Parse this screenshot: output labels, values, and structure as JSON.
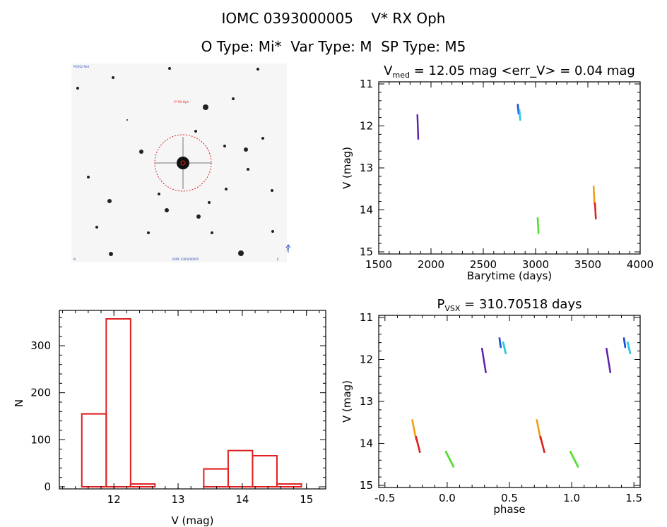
{
  "header": {
    "line1": "IOMC 0393000005    V* RX Oph",
    "line2": "O Type: Mi*  Var Type: M  SP Type: M5"
  },
  "image_panel": {
    "target_label": "V* RX Oph",
    "corner_labels": [
      "POSS2 Red",
      "N",
      "E",
      "IOMC 0393000005",
      "1'"
    ]
  },
  "chart_data": [
    {
      "type": "scatter",
      "id": "lightcurve",
      "title_prefix": "V",
      "title_sub": "med",
      "title_rest": " = 12.05 mag <err_V> = 0.04 mag",
      "xlabel": "Barytime (days)",
      "ylabel": "V (mag)",
      "xlim": [
        1500,
        4000
      ],
      "ylim": [
        15.05,
        10.95
      ],
      "xticks": [
        1500,
        2000,
        2500,
        3000,
        3500,
        4000
      ],
      "yticks": [
        11,
        12,
        13,
        14,
        15
      ],
      "series": [
        {
          "name": "group1",
          "color": "#5a1ea8",
          "x": 1870,
          "y_range": [
            11.75,
            12.3
          ]
        },
        {
          "name": "group2a",
          "color": "#1e4fd6",
          "x": 2830,
          "y_range": [
            11.5,
            11.7
          ]
        },
        {
          "name": "group2b",
          "color": "#28c8e8",
          "x": 2845,
          "y_range": [
            11.62,
            11.85
          ]
        },
        {
          "name": "group3",
          "color": "#50e02a",
          "x": 3020,
          "y_range": [
            14.2,
            14.55
          ]
        },
        {
          "name": "group4a",
          "color": "#f09a10",
          "x": 3555,
          "y_range": [
            13.45,
            13.85
          ]
        },
        {
          "name": "group4b",
          "color": "#e02020",
          "x": 3568,
          "y_range": [
            13.85,
            14.2
          ]
        }
      ]
    },
    {
      "type": "bar",
      "id": "histogram",
      "xlabel": "V (mag)",
      "ylabel": "N",
      "xlim": [
        11.15,
        15.3
      ],
      "ylim": [
        0,
        375
      ],
      "xticks": [
        12,
        13,
        14,
        15
      ],
      "yticks": [
        0,
        100,
        200,
        300
      ],
      "bin_edges": [
        11.5,
        11.88,
        12.26,
        12.64,
        13.02,
        13.4,
        13.78,
        14.16,
        14.54,
        14.92
      ],
      "values": [
        155,
        357,
        6,
        0,
        0,
        38,
        77,
        66,
        6
      ],
      "color": "#e02020"
    },
    {
      "type": "scatter",
      "id": "phased",
      "title_prefix": "P",
      "title_sub": "VSX",
      "title_rest": " = 310.70518 days",
      "xlabel": "phase",
      "ylabel": "V (mag)",
      "xlim": [
        -0.55,
        1.55
      ],
      "ylim": [
        15.05,
        10.95
      ],
      "xticks": [
        -0.5,
        0.0,
        0.5,
        1.0,
        1.5
      ],
      "xticklabels": [
        "-0.5",
        "0.0",
        "0.5",
        "1.0",
        "1.5"
      ],
      "yticks": [
        11,
        12,
        13,
        14,
        15
      ],
      "series": [
        {
          "name": "g4a",
          "color": "#f09a10",
          "x_range": [
            -0.28,
            -0.25
          ],
          "y_range": [
            13.45,
            13.9
          ]
        },
        {
          "name": "g4b",
          "color": "#e02020",
          "x_range": [
            -0.25,
            -0.22
          ],
          "y_range": [
            13.85,
            14.2
          ]
        },
        {
          "name": "g3",
          "color": "#50e02a",
          "x_range": [
            -0.01,
            0.05
          ],
          "y_range": [
            14.2,
            14.55
          ]
        },
        {
          "name": "g1",
          "color": "#5a1ea8",
          "x_range": [
            0.28,
            0.31
          ],
          "y_range": [
            11.75,
            12.3
          ]
        },
        {
          "name": "g2a",
          "color": "#1e4fd6",
          "x_range": [
            0.42,
            0.43
          ],
          "y_range": [
            11.5,
            11.7
          ]
        },
        {
          "name": "g2b",
          "color": "#28c8e8",
          "x_range": [
            0.45,
            0.47
          ],
          "y_range": [
            11.6,
            11.85
          ]
        },
        {
          "name": "g4a2",
          "color": "#f09a10",
          "x_range": [
            0.72,
            0.75
          ],
          "y_range": [
            13.45,
            13.9
          ]
        },
        {
          "name": "g4b2",
          "color": "#e02020",
          "x_range": [
            0.75,
            0.78
          ],
          "y_range": [
            13.85,
            14.2
          ]
        },
        {
          "name": "g3b",
          "color": "#50e02a",
          "x_range": [
            0.99,
            1.05
          ],
          "y_range": [
            14.2,
            14.55
          ]
        },
        {
          "name": "g1b",
          "color": "#5a1ea8",
          "x_range": [
            1.28,
            1.31
          ],
          "y_range": [
            11.75,
            12.3
          ]
        },
        {
          "name": "g2c",
          "color": "#1e4fd6",
          "x_range": [
            1.42,
            1.43
          ],
          "y_range": [
            11.5,
            11.7
          ]
        },
        {
          "name": "g2d",
          "color": "#28c8e8",
          "x_range": [
            1.45,
            1.47
          ],
          "y_range": [
            11.6,
            11.85
          ]
        }
      ]
    }
  ]
}
